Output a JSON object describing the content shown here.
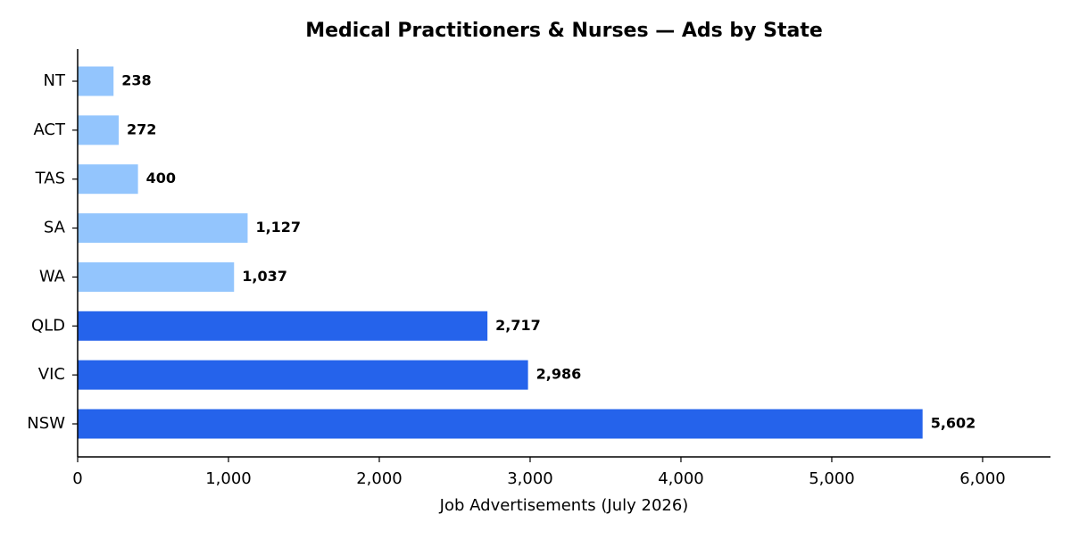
{
  "chart_data": {
    "type": "bar",
    "orientation": "horizontal",
    "title": "Medical Practitioners & Nurses — Ads by State",
    "xlabel": "Job Advertisements (July 2026)",
    "ylabel": "",
    "categories": [
      "NSW",
      "VIC",
      "QLD",
      "WA",
      "SA",
      "TAS",
      "ACT",
      "NT"
    ],
    "values": [
      5602,
      2986,
      2717,
      1037,
      1127,
      400,
      272,
      238
    ],
    "value_labels": [
      "5,602",
      "2,986",
      "2,717",
      "1,037",
      "1,127",
      "400",
      "272",
      "238"
    ],
    "xlim": [
      0,
      6450
    ],
    "xticks": [
      0,
      1000,
      2000,
      3000,
      4000,
      5000,
      6000
    ],
    "xtick_labels": [
      "0",
      "1,000",
      "2,000",
      "3,000",
      "4,000",
      "5,000",
      "6,000"
    ],
    "grid": false,
    "colors": {
      "highlight": "#2563eb",
      "normal": "#93c5fd",
      "axis": "#000000",
      "text": "#000000"
    },
    "bar_colors": [
      "highlight",
      "highlight",
      "highlight",
      "normal",
      "normal",
      "normal",
      "normal",
      "normal"
    ]
  }
}
